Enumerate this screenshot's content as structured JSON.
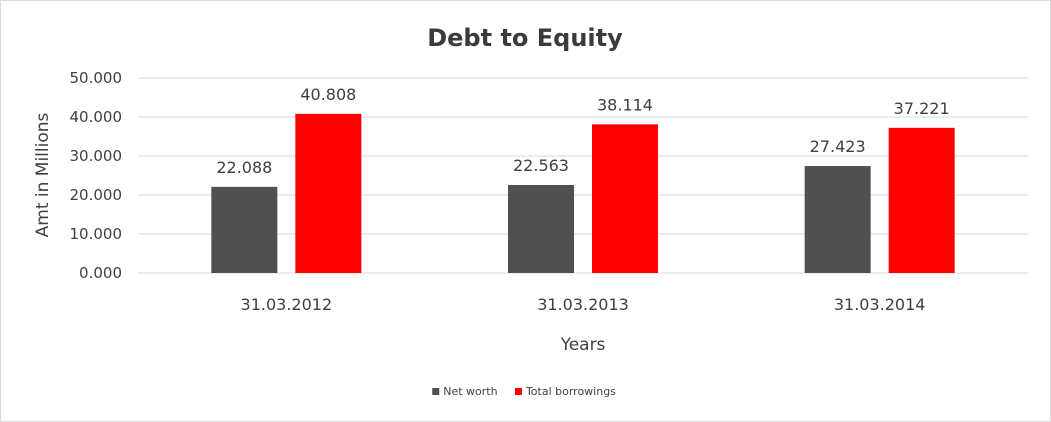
{
  "chart_data": {
    "type": "bar",
    "title": "Debt to Equity",
    "xlabel": "Years",
    "ylabel": "Amt in Millions",
    "categories": [
      "31.03.2012",
      "31.03.2013",
      "31.03.2014"
    ],
    "series": [
      {
        "name": "Net worth",
        "color": "#505050",
        "values": [
          22.088,
          22.563,
          27.423
        ]
      },
      {
        "name": "Total borrowings",
        "color": "#ff0000",
        "values": [
          40.808,
          38.114,
          37.221
        ]
      }
    ],
    "ylim": [
      0,
      50
    ],
    "yticks": [
      "0.000",
      "10.000",
      "20.000",
      "30.000",
      "40.000",
      "50.000"
    ],
    "data_labels": [
      [
        "22.088",
        "22.563",
        "27.423"
      ],
      [
        "40.808",
        "38.114",
        "37.221"
      ]
    ],
    "grid": true,
    "legend_position": "bottom"
  }
}
